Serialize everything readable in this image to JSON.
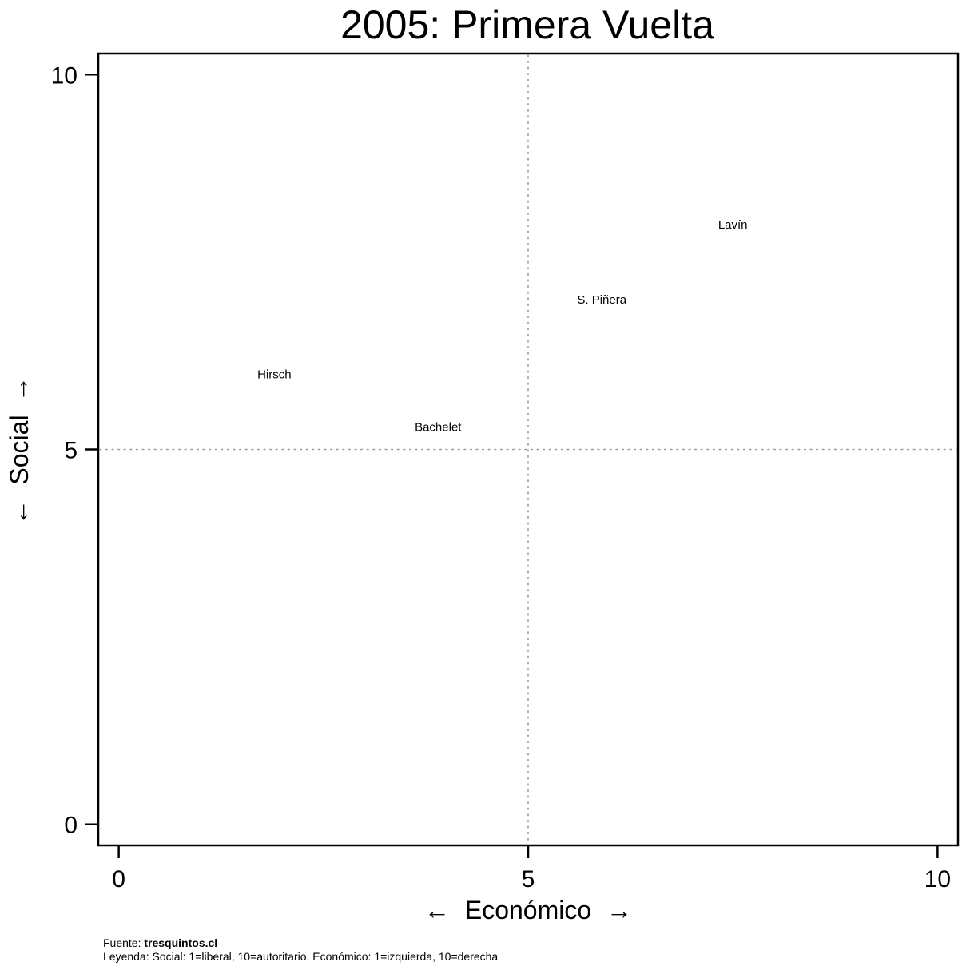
{
  "chart_data": {
    "type": "scatter",
    "title": "2005: Primera Vuelta",
    "xlabel": "Económico",
    "ylabel": "Social",
    "xlabel_arrow_left": "←",
    "xlabel_arrow_right": "→",
    "ylabel_arrow_low": "←",
    "ylabel_arrow_high": "→",
    "xlim": [
      -0.25,
      10.25
    ],
    "ylim": [
      -0.28,
      10.28
    ],
    "xticks": [
      0,
      5,
      10
    ],
    "yticks": [
      0,
      5,
      10
    ],
    "reference_lines": {
      "x": 5,
      "y": 5,
      "style": "dotted"
    },
    "grid": false,
    "points": [
      {
        "label": "Lavín",
        "x": 7.5,
        "y": 8.0
      },
      {
        "label": "S. Piñera",
        "x": 5.9,
        "y": 7.0
      },
      {
        "label": "Hirsch",
        "x": 1.9,
        "y": 6.0
      },
      {
        "label": "Bachelet",
        "x": 3.9,
        "y": 5.3
      }
    ]
  },
  "footer": {
    "source_prefix": "Fuente: ",
    "source_name": "tresquintos.cl",
    "legend": "Leyenda: Social: 1=liberal, 10=autoritario. Económico: 1=izquierda, 10=derecha"
  },
  "colors": {
    "text": "#000000",
    "reference_line": "#9a9a9a",
    "background": "#ffffff"
  }
}
